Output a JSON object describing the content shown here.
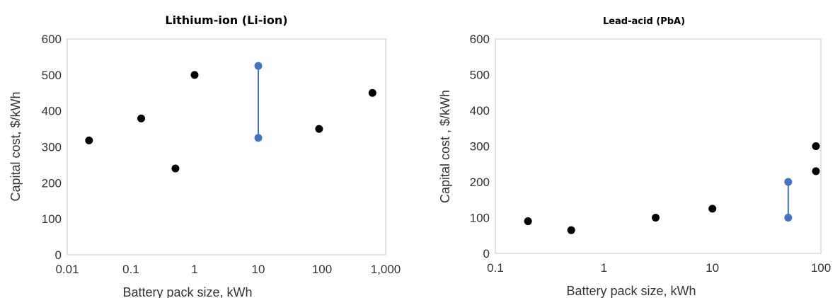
{
  "chart_data": [
    {
      "type": "scatter",
      "title": "Lithium-ion (Li-ion)",
      "xlabel": "Battery pack size, kWh",
      "ylabel": "Capital cost,  $/kWh",
      "xscale": "log",
      "xlim": [
        0.01,
        1000
      ],
      "ylim": [
        0,
        600
      ],
      "grid": false,
      "x_ticks": [
        0.01,
        0.1,
        1,
        10,
        100,
        1000
      ],
      "x_tick_labels": [
        "0.01",
        "0.1",
        "1",
        "10",
        "100",
        "1,000"
      ],
      "y_ticks": [
        0,
        100,
        200,
        300,
        400,
        500,
        600
      ],
      "y_tick_labels": [
        "0",
        "100",
        "200",
        "300",
        "400",
        "500",
        "600"
      ],
      "points": [
        {
          "x": 0.022,
          "y": 318
        },
        {
          "x": 0.145,
          "y": 379
        },
        {
          "x": 0.5,
          "y": 240
        },
        {
          "x": 1,
          "y": 500
        },
        {
          "x": 90,
          "y": 350
        },
        {
          "x": 620,
          "y": 450
        }
      ],
      "ranges": [
        {
          "x": 10,
          "y_min": 325,
          "y_max": 525
        }
      ],
      "colors": {
        "points": "#000000",
        "ranges": "#4472C4"
      }
    },
    {
      "type": "scatter",
      "title": "Lead-acid (PbA)",
      "xlabel": "Battery pack size, kWh",
      "ylabel": "Capital cost , $/kWh",
      "xscale": "log",
      "xlim": [
        0.1,
        100
      ],
      "ylim": [
        0,
        600
      ],
      "grid": false,
      "x_ticks": [
        0.1,
        1,
        10,
        100
      ],
      "x_tick_labels": [
        "0.1",
        "1",
        "10",
        "100"
      ],
      "y_ticks": [
        0,
        100,
        200,
        300,
        400,
        500,
        600
      ],
      "y_tick_labels": [
        "0",
        "100",
        "200",
        "300",
        "400",
        "500",
        "600"
      ],
      "points": [
        {
          "x": 0.2,
          "y": 90
        },
        {
          "x": 0.5,
          "y": 65
        },
        {
          "x": 3,
          "y": 100
        },
        {
          "x": 10,
          "y": 125
        },
        {
          "x": 90,
          "y": 300
        },
        {
          "x": 90,
          "y": 230
        }
      ],
      "ranges": [
        {
          "x": 50,
          "y_min": 100,
          "y_max": 200
        }
      ],
      "colors": {
        "points": "#000000",
        "ranges": "#4472C4"
      }
    }
  ]
}
